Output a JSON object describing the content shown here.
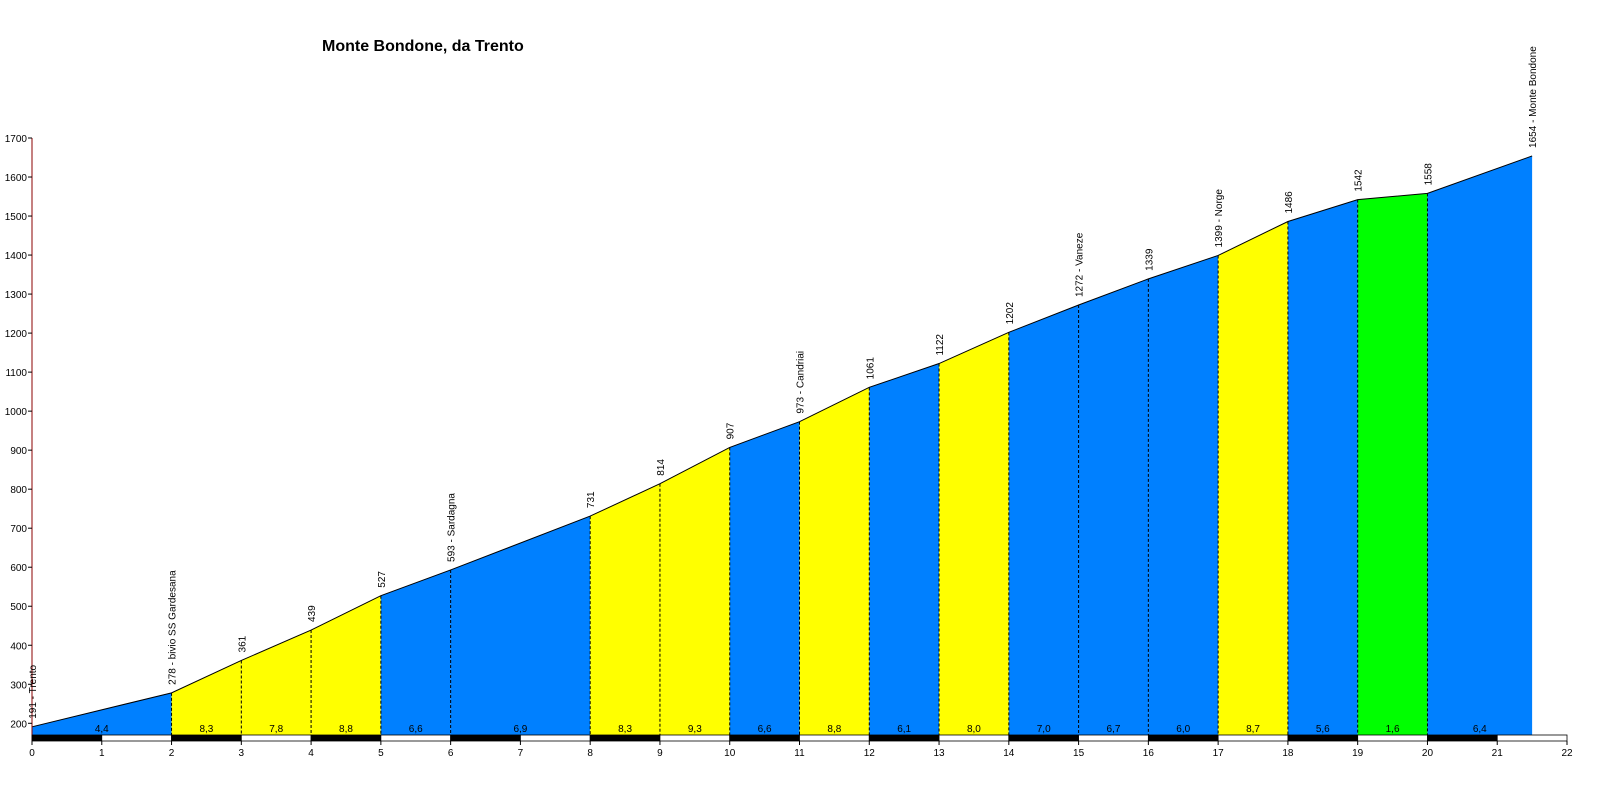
{
  "chart_data": {
    "type": "area",
    "title": "Monte Bondone, da Trento",
    "xlabel": "",
    "ylabel": "",
    "xlim": [
      0,
      22
    ],
    "ylim": [
      170,
      1700
    ],
    "x_ticks": [
      "0",
      "1",
      "2",
      "3",
      "4",
      "5",
      "6",
      "7",
      "8",
      "9",
      "10",
      "11",
      "12",
      "13",
      "14",
      "15",
      "16",
      "17",
      "18",
      "19",
      "20",
      "21",
      "22"
    ],
    "y_ticks": [
      "200",
      "300",
      "400",
      "500",
      "600",
      "700",
      "800",
      "900",
      "1000",
      "1100",
      "1200",
      "1300",
      "1400",
      "1500",
      "1600",
      "1700"
    ],
    "points": [
      {
        "x": 0,
        "y": 191,
        "label": "191 - Trento"
      },
      {
        "x": 2,
        "y": 278,
        "label": "278 - bivio  SS  Gardesana"
      },
      {
        "x": 3,
        "y": 361,
        "label": "361"
      },
      {
        "x": 4,
        "y": 439,
        "label": "439"
      },
      {
        "x": 5,
        "y": 527,
        "label": "527"
      },
      {
        "x": 6,
        "y": 593,
        "label": "593 - Sardagna"
      },
      {
        "x": 8,
        "y": 731,
        "label": "731"
      },
      {
        "x": 9,
        "y": 814,
        "label": "814"
      },
      {
        "x": 10,
        "y": 907,
        "label": "907"
      },
      {
        "x": 11,
        "y": 973,
        "label": "973 - Candriai"
      },
      {
        "x": 12,
        "y": 1061,
        "label": "1061"
      },
      {
        "x": 13,
        "y": 1122,
        "label": "1122"
      },
      {
        "x": 14,
        "y": 1202,
        "label": "1202"
      },
      {
        "x": 15,
        "y": 1272,
        "label": "1272 - Vaneze"
      },
      {
        "x": 16,
        "y": 1339,
        "label": "1339"
      },
      {
        "x": 17,
        "y": 1399,
        "label": "1399 - Norge"
      },
      {
        "x": 18,
        "y": 1486,
        "label": "1486"
      },
      {
        "x": 19,
        "y": 1542,
        "label": "1542"
      },
      {
        "x": 20,
        "y": 1558,
        "label": "1558"
      },
      {
        "x": 21.5,
        "y": 1654,
        "label": "1654 - Monte Bondone"
      }
    ],
    "segments": [
      {
        "from": 0,
        "to": 2,
        "gradient": "4,4",
        "color": "#0080ff"
      },
      {
        "from": 2,
        "to": 3,
        "gradient": "8,3",
        "color": "#ffff00"
      },
      {
        "from": 3,
        "to": 4,
        "gradient": "7,8",
        "color": "#ffff00"
      },
      {
        "from": 4,
        "to": 5,
        "gradient": "8,8",
        "color": "#ffff00"
      },
      {
        "from": 5,
        "to": 6,
        "gradient": "6,6",
        "color": "#0080ff"
      },
      {
        "from": 6,
        "to": 8,
        "gradient": "6,9",
        "color": "#0080ff"
      },
      {
        "from": 8,
        "to": 9,
        "gradient": "8,3",
        "color": "#ffff00"
      },
      {
        "from": 9,
        "to": 10,
        "gradient": "9,3",
        "color": "#ffff00"
      },
      {
        "from": 10,
        "to": 11,
        "gradient": "6,6",
        "color": "#0080ff"
      },
      {
        "from": 11,
        "to": 12,
        "gradient": "8,8",
        "color": "#ffff00"
      },
      {
        "from": 12,
        "to": 13,
        "gradient": "6,1",
        "color": "#0080ff"
      },
      {
        "from": 13,
        "to": 14,
        "gradient": "8,0",
        "color": "#ffff00"
      },
      {
        "from": 14,
        "to": 15,
        "gradient": "7,0",
        "color": "#0080ff"
      },
      {
        "from": 15,
        "to": 16,
        "gradient": "6,7",
        "color": "#0080ff"
      },
      {
        "from": 16,
        "to": 17,
        "gradient": "6,0",
        "color": "#0080ff"
      },
      {
        "from": 17,
        "to": 18,
        "gradient": "8,7",
        "color": "#ffff00"
      },
      {
        "from": 18,
        "to": 19,
        "gradient": "5,6",
        "color": "#0080ff"
      },
      {
        "from": 19,
        "to": 20,
        "gradient": "1,6",
        "color": "#00ff00"
      },
      {
        "from": 20,
        "to": 21.5,
        "gradient": "6,4",
        "color": "#0080ff"
      }
    ],
    "grid": false,
    "legend": "none"
  }
}
